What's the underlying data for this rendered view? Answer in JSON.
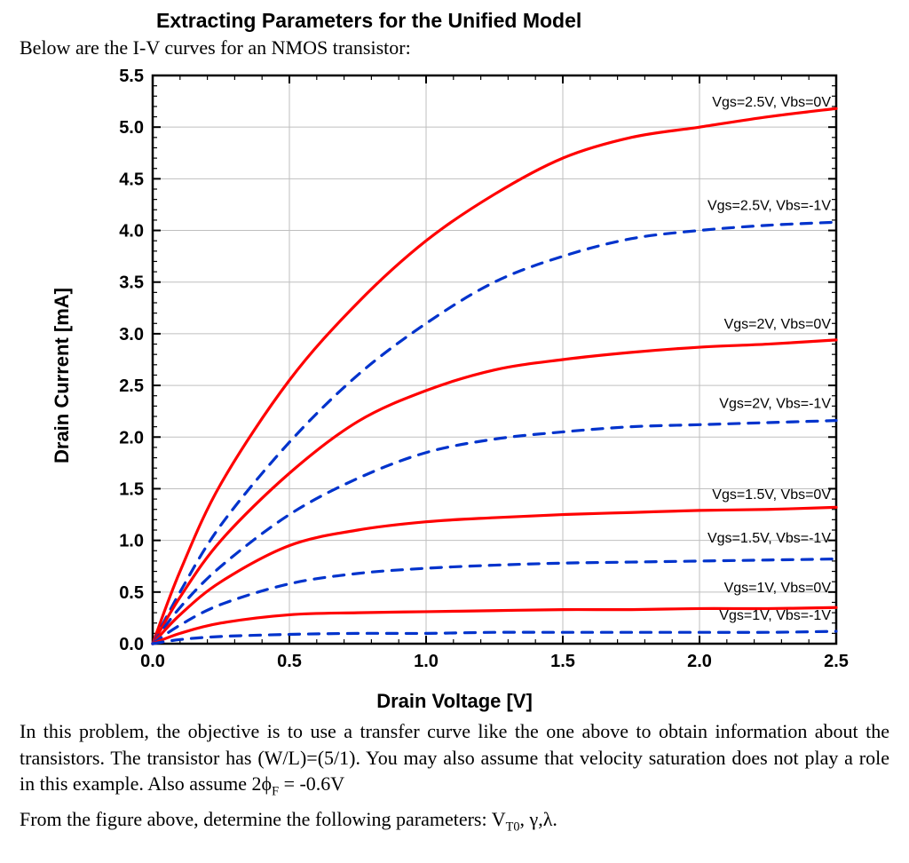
{
  "title": "Extracting Parameters for the Unified Model",
  "subtitle": "Below are the I-V curves for an NMOS transistor:",
  "chart": {
    "type": "line",
    "xlabel": "Drain Voltage [V]",
    "ylabel": "Drain Current [mA]",
    "xlim": [
      0.0,
      2.5
    ],
    "ylim": [
      0.0,
      5.5
    ],
    "xtick_step": 0.5,
    "ytick_step": 0.5,
    "xticks": [
      "0.0",
      "0.5",
      "1.0",
      "1.5",
      "2.0",
      "2.5"
    ],
    "yticks": [
      "0.0",
      "0.5",
      "1.0",
      "1.5",
      "2.0",
      "2.5",
      "3.0",
      "3.5",
      "4.0",
      "4.5",
      "5.0",
      "5.5"
    ],
    "minor_per_major": 5,
    "background_color": "#ffffff",
    "grid_color": "#bfbfbf",
    "axis_color": "#000000",
    "tick_fontsize": 20,
    "tick_fontweight": "700",
    "label_fontsize": 22,
    "label_fontweight": "700",
    "curve_label_fontsize": 16,
    "curve_label_fontfamily": "Arial",
    "solid_color": "#ff0000",
    "dashed_color": "#0033cc",
    "line_width": 3.2,
    "dash_pattern": "12 10",
    "series": [
      {
        "label": "Vgs=2.5V, Vbs=0V",
        "style": "solid",
        "label_y": 5.2,
        "points": [
          [
            0,
            0
          ],
          [
            0.1,
            0.7
          ],
          [
            0.25,
            1.55
          ],
          [
            0.5,
            2.55
          ],
          [
            0.75,
            3.3
          ],
          [
            1.0,
            3.9
          ],
          [
            1.25,
            4.35
          ],
          [
            1.5,
            4.7
          ],
          [
            1.75,
            4.9
          ],
          [
            2.0,
            5.0
          ],
          [
            2.25,
            5.1
          ],
          [
            2.5,
            5.18
          ]
        ]
      },
      {
        "label": "Vgs=2.5V, Vbs=-1V",
        "style": "dashed",
        "label_y": 4.2,
        "points": [
          [
            0,
            0
          ],
          [
            0.1,
            0.5
          ],
          [
            0.25,
            1.15
          ],
          [
            0.5,
            1.95
          ],
          [
            0.75,
            2.6
          ],
          [
            1.0,
            3.1
          ],
          [
            1.25,
            3.5
          ],
          [
            1.5,
            3.75
          ],
          [
            1.75,
            3.92
          ],
          [
            2.0,
            4.0
          ],
          [
            2.25,
            4.05
          ],
          [
            2.5,
            4.08
          ]
        ]
      },
      {
        "label": "Vgs=2V, Vbs=0V",
        "style": "solid",
        "label_y": 3.05,
        "points": [
          [
            0,
            0
          ],
          [
            0.1,
            0.45
          ],
          [
            0.25,
            1.0
          ],
          [
            0.5,
            1.65
          ],
          [
            0.75,
            2.15
          ],
          [
            1.0,
            2.45
          ],
          [
            1.25,
            2.65
          ],
          [
            1.5,
            2.75
          ],
          [
            1.75,
            2.82
          ],
          [
            2.0,
            2.87
          ],
          [
            2.25,
            2.9
          ],
          [
            2.5,
            2.94
          ]
        ]
      },
      {
        "label": "Vgs=2V, Vbs=-1V",
        "style": "dashed",
        "label_y": 2.28,
        "points": [
          [
            0,
            0
          ],
          [
            0.1,
            0.35
          ],
          [
            0.25,
            0.75
          ],
          [
            0.5,
            1.25
          ],
          [
            0.75,
            1.6
          ],
          [
            1.0,
            1.85
          ],
          [
            1.25,
            1.98
          ],
          [
            1.5,
            2.05
          ],
          [
            1.75,
            2.1
          ],
          [
            2.0,
            2.12
          ],
          [
            2.25,
            2.14
          ],
          [
            2.5,
            2.16
          ]
        ]
      },
      {
        "label": "Vgs=1.5V, Vbs=0V",
        "style": "solid",
        "label_y": 1.4,
        "points": [
          [
            0,
            0
          ],
          [
            0.1,
            0.28
          ],
          [
            0.25,
            0.6
          ],
          [
            0.5,
            0.95
          ],
          [
            0.75,
            1.1
          ],
          [
            1.0,
            1.18
          ],
          [
            1.25,
            1.22
          ],
          [
            1.5,
            1.25
          ],
          [
            1.75,
            1.27
          ],
          [
            2.0,
            1.29
          ],
          [
            2.25,
            1.3
          ],
          [
            2.5,
            1.32
          ]
        ]
      },
      {
        "label": "Vgs=1.5V, Vbs=-1V",
        "style": "dashed",
        "label_y": 0.98,
        "points": [
          [
            0,
            0
          ],
          [
            0.1,
            0.18
          ],
          [
            0.25,
            0.38
          ],
          [
            0.5,
            0.58
          ],
          [
            0.75,
            0.68
          ],
          [
            1.0,
            0.73
          ],
          [
            1.25,
            0.76
          ],
          [
            1.5,
            0.78
          ],
          [
            1.75,
            0.79
          ],
          [
            2.0,
            0.8
          ],
          [
            2.25,
            0.81
          ],
          [
            2.5,
            0.82
          ]
        ]
      },
      {
        "label": "Vgs=1V, Vbs=0V",
        "style": "solid",
        "label_y": 0.5,
        "points": [
          [
            0,
            0
          ],
          [
            0.1,
            0.1
          ],
          [
            0.25,
            0.2
          ],
          [
            0.5,
            0.28
          ],
          [
            0.75,
            0.3
          ],
          [
            1.0,
            0.31
          ],
          [
            1.25,
            0.32
          ],
          [
            1.5,
            0.33
          ],
          [
            1.75,
            0.33
          ],
          [
            2.0,
            0.34
          ],
          [
            2.25,
            0.34
          ],
          [
            2.5,
            0.35
          ]
        ]
      },
      {
        "label": "Vgs=1V, Vbs=-1V",
        "style": "dashed",
        "label_y": 0.23,
        "points": [
          [
            0,
            0
          ],
          [
            0.1,
            0.04
          ],
          [
            0.25,
            0.07
          ],
          [
            0.5,
            0.09
          ],
          [
            0.75,
            0.1
          ],
          [
            1.0,
            0.1
          ],
          [
            1.25,
            0.11
          ],
          [
            1.5,
            0.11
          ],
          [
            1.75,
            0.11
          ],
          [
            2.0,
            0.11
          ],
          [
            2.25,
            0.11
          ],
          [
            2.5,
            0.12
          ]
        ]
      }
    ]
  },
  "body": {
    "p1": "In this problem, the objective is to use a transfer curve like the one above to obtain information about the transistors. The transistor has (W/L)=(5/1). You may also assume that velocity saturation does not play a role in this example. Also assume 2ϕ",
    "p1_sub": "F",
    "p1_tail": " = -0.6V",
    "p2": "From the figure above, determine the following parameters: V",
    "p2_sub": "T0",
    "p2_tail": ", γ,λ."
  }
}
